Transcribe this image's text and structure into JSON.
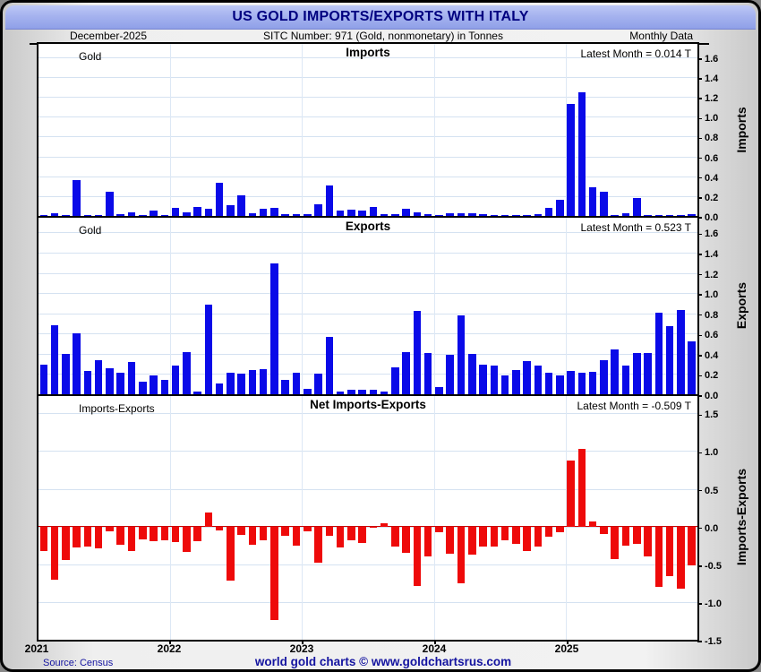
{
  "window": {
    "title": "US GOLD IMPORTS/EXPORTS WITH ITALY"
  },
  "subheader": {
    "date": "December-2025",
    "sitc": "SITC Number: 971 (Gold, nonmonetary) in Tonnes",
    "frequency": "Monthly Data"
  },
  "footer": {
    "source": "Source: Census",
    "credit": "world gold charts © www.goldchartsrus.com"
  },
  "colors": {
    "accent_titlebar": "#a6b3ef",
    "title_text": "#000080",
    "bar_blue": "#0a0ae8",
    "bar_red": "#ee0a0a",
    "gridline": "#d5e2f1",
    "footer_text": "#1414a0"
  },
  "chart_data": {
    "type": "bar",
    "x_years": [
      "2021",
      "2022",
      "2023",
      "2024",
      "2025"
    ],
    "months_per_year": 12,
    "unit": "Tonnes",
    "panels": [
      {
        "id": "imports",
        "title": "Imports",
        "legend": "Gold",
        "latest_label": "Latest Month = 0.014 T",
        "axis_label": "Imports",
        "ylim": [
          0,
          1.6
        ],
        "yticks": [
          0.0,
          0.2,
          0.4,
          0.6,
          0.8,
          1.0,
          1.2,
          1.4,
          1.6
        ],
        "color": "#0a0ae8",
        "values": [
          0.01,
          0.03,
          0.01,
          0.36,
          0.01,
          0.01,
          0.24,
          0.02,
          0.04,
          0.01,
          0.05,
          0.01,
          0.08,
          0.04,
          0.09,
          0.07,
          0.33,
          0.11,
          0.21,
          0.03,
          0.07,
          0.08,
          0.02,
          0.02,
          0.02,
          0.12,
          0.31,
          0.05,
          0.06,
          0.05,
          0.09,
          0.02,
          0.02,
          0.07,
          0.04,
          0.02,
          0.01,
          0.03,
          0.03,
          0.03,
          0.02,
          0.01,
          0.01,
          0.01,
          0.01,
          0.02,
          0.08,
          0.16,
          1.13,
          1.25,
          0.29,
          0.24,
          0.01,
          0.03,
          0.18,
          0.01,
          0.01,
          0.01,
          0.01,
          0.014
        ]
      },
      {
        "id": "exports",
        "title": "Exports",
        "legend": "Gold",
        "latest_label": "Latest Month = 0.523 T",
        "axis_label": "Exports",
        "ylim": [
          0,
          1.6
        ],
        "yticks": [
          0.0,
          0.2,
          0.4,
          0.6,
          0.8,
          1.0,
          1.2,
          1.4,
          1.6
        ],
        "color": "#0a0ae8",
        "values": [
          0.29,
          0.68,
          0.4,
          0.6,
          0.23,
          0.34,
          0.26,
          0.21,
          0.32,
          0.12,
          0.19,
          0.14,
          0.28,
          0.42,
          0.03,
          0.89,
          0.11,
          0.21,
          0.2,
          0.24,
          0.25,
          1.29,
          0.14,
          0.21,
          0.05,
          0.2,
          0.57,
          0.03,
          0.04,
          0.04,
          0.04,
          0.03,
          0.27,
          0.42,
          0.82,
          0.41,
          0.07,
          0.39,
          0.78,
          0.4,
          0.29,
          0.28,
          0.19,
          0.24,
          0.33,
          0.28,
          0.21,
          0.19,
          0.23,
          0.21,
          0.22,
          0.34,
          0.44,
          0.28,
          0.41,
          0.41,
          0.81,
          0.67,
          0.83,
          0.523
        ]
      },
      {
        "id": "net",
        "title": "Net Imports-Exports",
        "legend": "Imports-Exports",
        "latest_label": "Latest Month = -0.509 T",
        "axis_label": "Imports-Exports",
        "ylim": [
          -1.5,
          1.5
        ],
        "yticks": [
          -1.5,
          -1.0,
          -0.5,
          0.0,
          0.5,
          1.0,
          1.5
        ],
        "color": "#ee0a0a",
        "values": [
          -0.33,
          -0.71,
          -0.44,
          -0.28,
          -0.26,
          -0.29,
          -0.06,
          -0.24,
          -0.33,
          -0.17,
          -0.19,
          -0.18,
          -0.21,
          -0.34,
          -0.19,
          0.19,
          -0.05,
          -0.72,
          -0.11,
          -0.24,
          -0.18,
          -1.24,
          -0.12,
          -0.25,
          -0.06,
          -0.48,
          -0.12,
          -0.28,
          -0.18,
          -0.22,
          -0.02,
          0.04,
          -0.26,
          -0.35,
          -0.79,
          -0.39,
          -0.08,
          -0.36,
          -0.75,
          -0.37,
          -0.27,
          -0.27,
          -0.18,
          -0.23,
          -0.32,
          -0.26,
          -0.13,
          -0.07,
          0.87,
          1.03,
          0.07,
          -0.1,
          -0.43,
          -0.25,
          -0.23,
          -0.4,
          -0.8,
          -0.66,
          -0.82,
          -0.509
        ]
      }
    ]
  }
}
